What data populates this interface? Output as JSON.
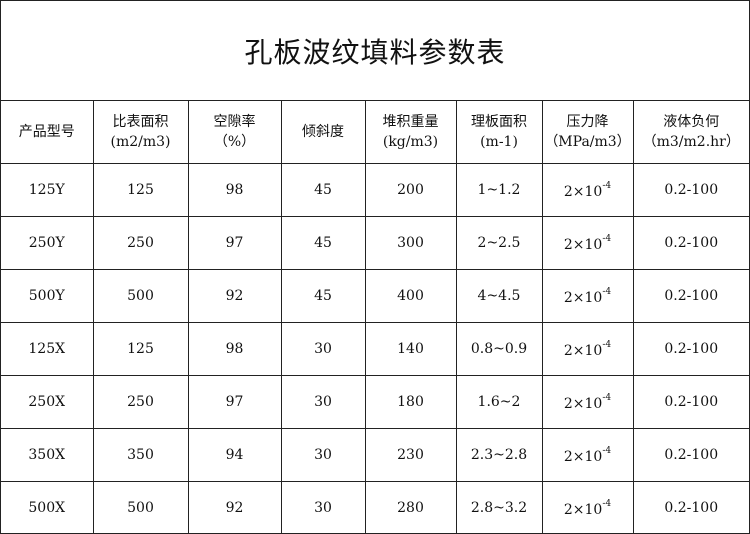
{
  "title": "孔板波纹填料参数表",
  "headers": [
    {
      "line1": "产品型号",
      "line2": ""
    },
    {
      "line1": "比表面积",
      "line2": "(m2/m3)"
    },
    {
      "line1": "空隙率",
      "line2": "（%）"
    },
    {
      "line1": "倾斜度",
      "line2": ""
    },
    {
      "line1": "堆积重量",
      "line2": "(kg/m3)"
    },
    {
      "line1": "理板面积",
      "line2": "(m-1)"
    },
    {
      "line1": "压力降",
      "line2": "（MPa/m3）"
    },
    {
      "line1": "液体负何",
      "line2": "（m3/m2.hr）"
    }
  ],
  "rows": [
    {
      "model": "125Y",
      "area": "125",
      "void": "98",
      "tilt": "45",
      "weight": "200",
      "plate": "1~1.2",
      "pd_base": "2×10",
      "pd_exp": "-4",
      "load": "0.2-100"
    },
    {
      "model": "250Y",
      "area": "250",
      "void": "97",
      "tilt": "45",
      "weight": "300",
      "plate": "2~2.5",
      "pd_base": "2×10",
      "pd_exp": "-4",
      "load": "0.2-100"
    },
    {
      "model": "500Y",
      "area": "500",
      "void": "92",
      "tilt": "45",
      "weight": "400",
      "plate": "4~4.5",
      "pd_base": "2×10",
      "pd_exp": "-4",
      "load": "0.2-100"
    },
    {
      "model": "125X",
      "area": "125",
      "void": "98",
      "tilt": "30",
      "weight": "140",
      "plate": "0.8~0.9",
      "pd_base": "2×10",
      "pd_exp": "-4",
      "load": "0.2-100"
    },
    {
      "model": "250X",
      "area": "250",
      "void": "97",
      "tilt": "30",
      "weight": "180",
      "plate": "1.6~2",
      "pd_base": "2×10",
      "pd_exp": "-4",
      "load": "0.2-100"
    },
    {
      "model": "350X",
      "area": "350",
      "void": "94",
      "tilt": "30",
      "weight": "230",
      "plate": "2.3~2.8",
      "pd_base": "2×10",
      "pd_exp": "-4",
      "load": "0.2-100"
    },
    {
      "model": "500X",
      "area": "500",
      "void": "92",
      "tilt": "30",
      "weight": "280",
      "plate": "2.8~3.2",
      "pd_base": "2×10",
      "pd_exp": "-4",
      "load": "0.2-100"
    }
  ]
}
